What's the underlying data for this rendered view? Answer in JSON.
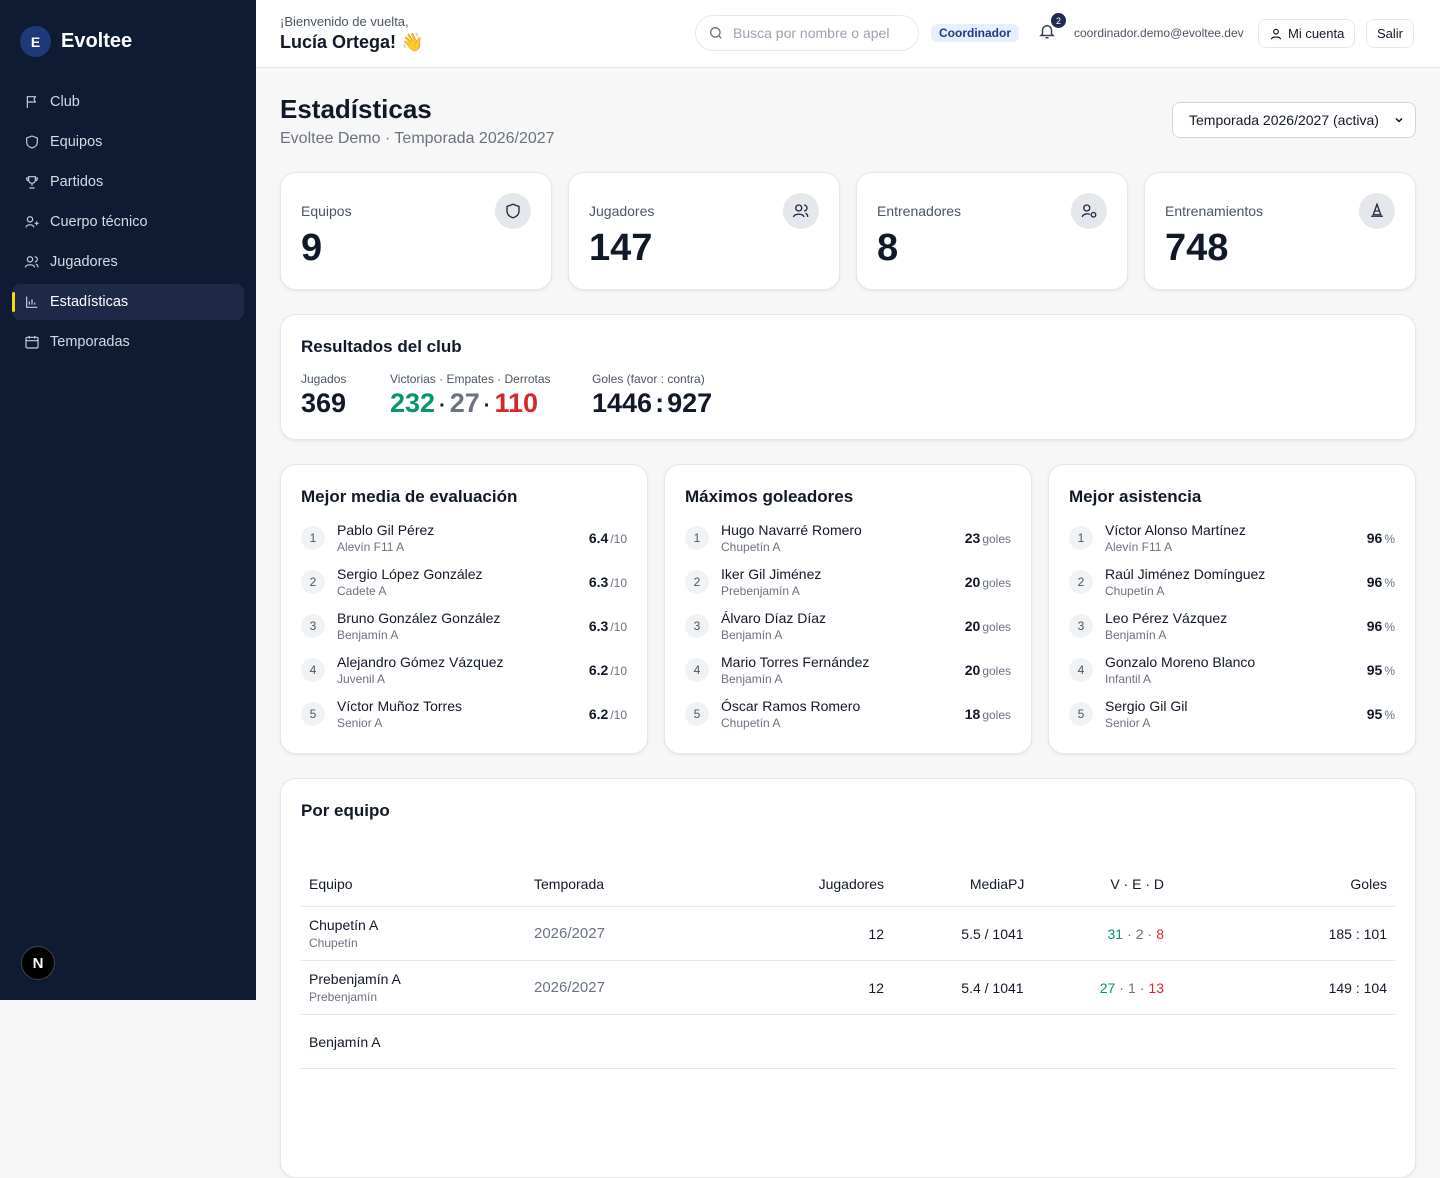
{
  "sidebar": {
    "logo_letter": "E",
    "brand": "Evoltee",
    "nav": [
      "Club",
      "Equipos",
      "Partidos",
      "Cuerpo técnico",
      "Jugadores",
      "Estadísticas",
      "Temporadas"
    ],
    "dev_badge": "N"
  },
  "header": {
    "greeting": "¡Bienvenido de vuelta,",
    "name": "Lucía Ortega! 👋",
    "search_placeholder": "Busca por nombre o apel",
    "role": "Coordinador",
    "notifications": 2,
    "email": "coordinador.demo@evoltee.dev",
    "account": "Mi cuenta",
    "logout": "Salir"
  },
  "page": {
    "title": "Estadísticas",
    "subtitle": "Evoltee Demo · Temporada 2026/2027",
    "season_select": "Temporada 2026/2027 (activa)"
  },
  "stats": [
    {
      "label": "Equipos",
      "value": 9
    },
    {
      "label": "Jugadores",
      "value": 147
    },
    {
      "label": "Entrenadores",
      "value": 8
    },
    {
      "label": "Entrenamientos",
      "value": 748
    }
  ],
  "results": {
    "title": "Resultados del club",
    "played_label": "Jugados",
    "played": 369,
    "ved_label": "Victorias · Empates · Derrotas",
    "wins": 232,
    "draws": 27,
    "losses": 110,
    "sep": "·",
    "goals_label": "Goles (favor : contra)",
    "goals_for": 1446,
    "goals_against": 927,
    "goals_sep": ":"
  },
  "rankings": [
    {
      "title": "Mejor media de evaluación",
      "unit": "/10",
      "items": [
        {
          "rank": 1,
          "name": "Pablo Gil Pérez",
          "team": "Alevín F11 A",
          "value": 6.4
        },
        {
          "rank": 2,
          "name": "Sergio López González",
          "team": "Cadete A",
          "value": 6.3
        },
        {
          "rank": 3,
          "name": "Bruno González González",
          "team": "Benjamín A",
          "value": 6.3
        },
        {
          "rank": 4,
          "name": "Alejandro Gómez Vázquez",
          "team": "Juvenil A",
          "value": 6.2
        },
        {
          "rank": 5,
          "name": "Víctor Muñoz Torres",
          "team": "Senior A",
          "value": 6.2
        }
      ]
    },
    {
      "title": "Máximos goleadores",
      "unit": "goles",
      "items": [
        {
          "rank": 1,
          "name": "Hugo Navarré Romero",
          "team": "Chupetín A",
          "value": 23
        },
        {
          "rank": 2,
          "name": "Iker Gil Jiménez",
          "team": "Prebenjamín A",
          "value": 20
        },
        {
          "rank": 3,
          "name": "Álvaro Díaz Díaz",
          "team": "Benjamín A",
          "value": 20
        },
        {
          "rank": 4,
          "name": "Mario Torres Fernández",
          "team": "Benjamín A",
          "value": 20
        },
        {
          "rank": 5,
          "name": "Óscar Ramos Romero",
          "team": "Chupetín A",
          "value": 18
        }
      ]
    },
    {
      "title": "Mejor asistencia",
      "unit": "%",
      "items": [
        {
          "rank": 1,
          "name": "Víctor Alonso Martínez",
          "team": "Alevín F11 A",
          "value": 96
        },
        {
          "rank": 2,
          "name": "Raúl Jiménez Domínguez",
          "team": "Chupetín A",
          "value": 96
        },
        {
          "rank": 3,
          "name": "Leo Pérez Vázquez",
          "team": "Benjamín A",
          "value": 96
        },
        {
          "rank": 4,
          "name": "Gonzalo Moreno Blanco",
          "team": "Infantil A",
          "value": 95
        },
        {
          "rank": 5,
          "name": "Sergio Gil Gil",
          "team": "Senior A",
          "value": 95
        }
      ]
    }
  ],
  "table": {
    "title": "Por equipo",
    "sep": "·",
    "columns": [
      "Equipo",
      "Temporada",
      "Jugadores",
      "Media",
      "PJ",
      "V · E · D",
      "Goles"
    ],
    "rows": [
      {
        "team": "Chupetín A",
        "category": "Chupetín",
        "season": "2026/2027",
        "players": 12,
        "average": "5.5 / 10",
        "games": 41,
        "wins": 31,
        "draws": 2,
        "losses": 8,
        "goals": "185 : 101"
      },
      {
        "team": "Prebenjamín A",
        "category": "Prebenjamín",
        "season": "2026/2027",
        "players": 12,
        "average": "5.4 / 10",
        "games": 41,
        "wins": 27,
        "draws": 1,
        "losses": 13,
        "goals": "149 : 104"
      },
      {
        "team": "Benjamín A"
      }
    ]
  }
}
